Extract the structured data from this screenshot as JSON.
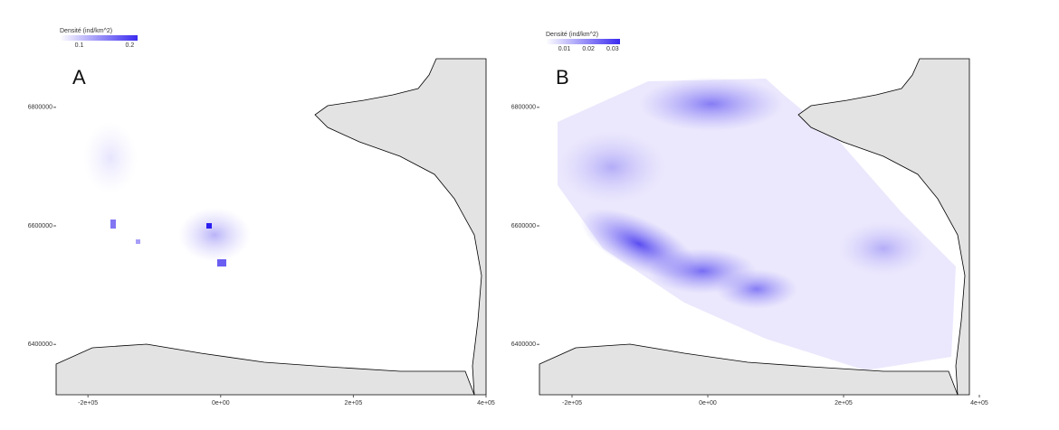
{
  "maps": [
    {
      "label": "A",
      "legend_title": "Densité (ind/km^2)",
      "legend_ticks": [
        0.1,
        0.2
      ],
      "legend_color": "#3b2bf0",
      "xlim": [
        -248000,
        400000
      ],
      "ylim": [
        6315000,
        6882000
      ],
      "xticks": [
        {
          "value": -200000,
          "label": "-2e+05"
        },
        {
          "value": 0,
          "label": "0e+00"
        },
        {
          "value": 200000,
          "label": "2e+05"
        },
        {
          "value": 400000,
          "label": "4e+05"
        }
      ],
      "yticks": [
        6400000,
        6600000,
        6800000
      ]
    },
    {
      "label": "B",
      "legend_title": "Densité (ind/km^2)",
      "legend_ticks": [
        0.01,
        0.02,
        0.03
      ],
      "legend_color": "#3b2bf0",
      "xlim": [
        -248000,
        400000
      ],
      "ylim": [
        6315000,
        6882000
      ],
      "xticks": [
        {
          "value": -200000,
          "label": "-2e+05"
        },
        {
          "value": 0,
          "label": "0e+00"
        },
        {
          "value": 200000,
          "label": "2e+05"
        },
        {
          "value": 400000,
          "label": "4e+05"
        }
      ],
      "yticks": [
        6400000,
        6600000,
        6800000
      ]
    }
  ]
}
